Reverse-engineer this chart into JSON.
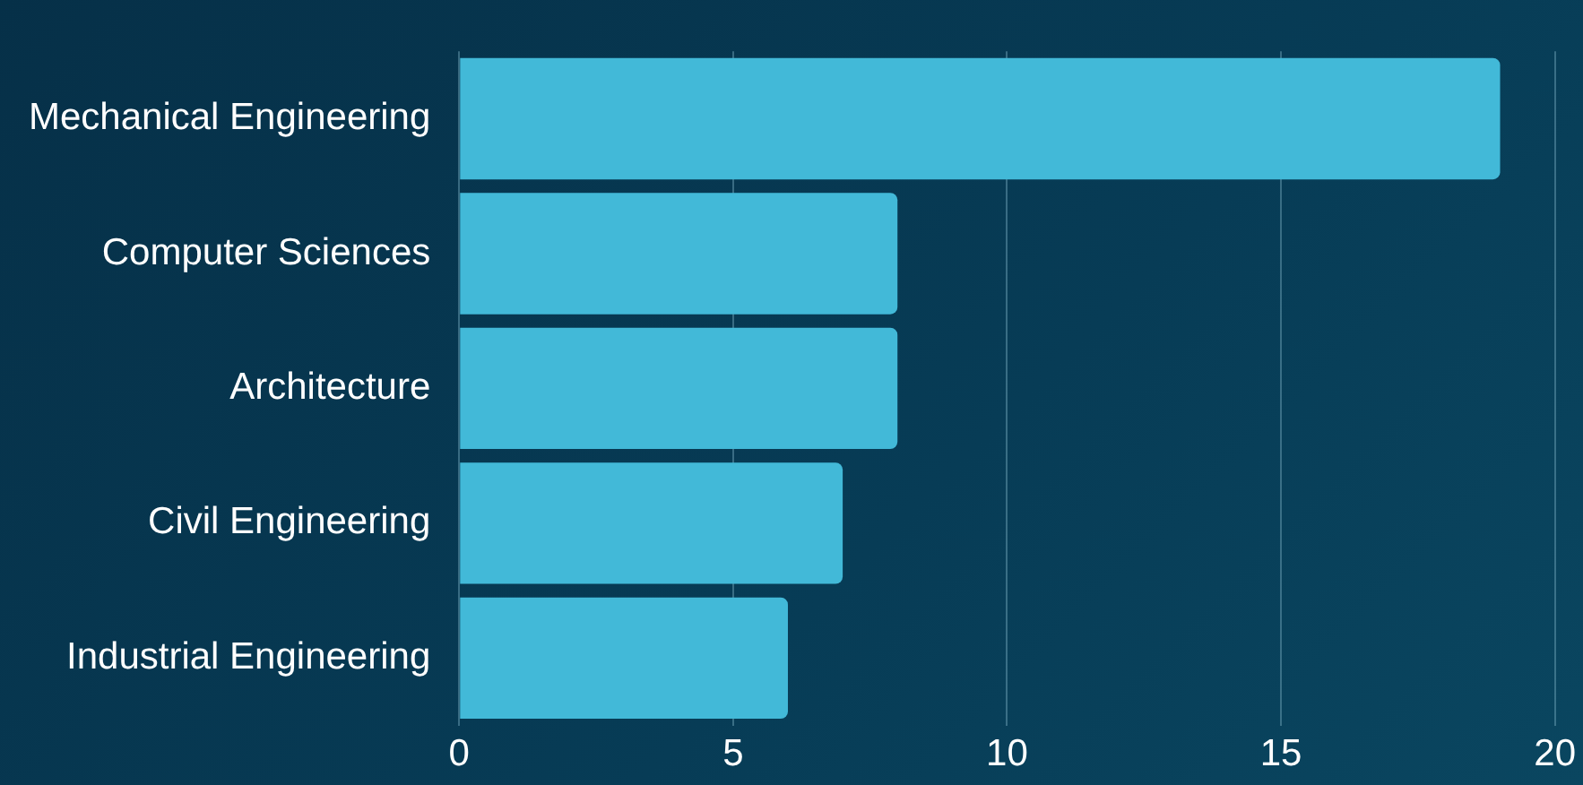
{
  "chart_data": {
    "type": "bar",
    "orientation": "horizontal",
    "categories": [
      "Mechanical Engineering",
      "Computer Sciences",
      "Architecture",
      "Civil Engineering",
      "Industrial Engineering"
    ],
    "values": [
      19,
      8,
      8,
      7,
      6
    ],
    "color": "#42b9d8",
    "xlim": [
      0,
      20
    ],
    "xticks": [
      0,
      5,
      10,
      15,
      20
    ],
    "grid": "x",
    "legend": false
  }
}
